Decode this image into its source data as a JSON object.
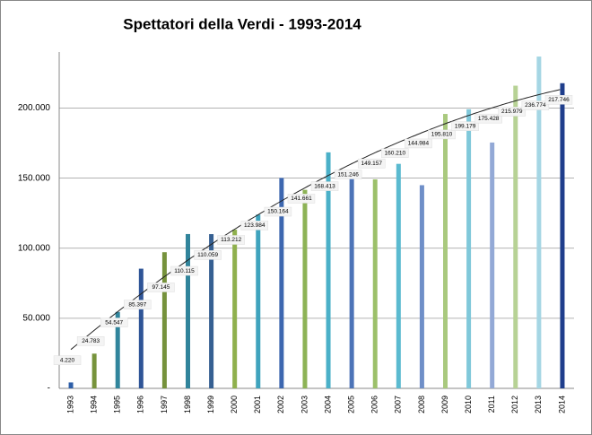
{
  "chart_data": {
    "type": "bar",
    "title": "Spettatori della Verdi - 1993-2014",
    "categories": [
      "1993",
      "1994",
      "1995",
      "1996",
      "1997",
      "1998",
      "1999",
      "2000",
      "2001",
      "2002",
      "2003",
      "2004",
      "2005",
      "2006",
      "2007",
      "2008",
      "2009",
      "2010",
      "2011",
      "2012",
      "2013",
      "2014"
    ],
    "values": [
      4220,
      24783,
      54547,
      85397,
      97145,
      110115,
      110059,
      113212,
      123984,
      150164,
      141661,
      168413,
      151246,
      149157,
      160210,
      144984,
      195810,
      199179,
      175428,
      215979,
      236774,
      217746
    ],
    "value_labels": [
      "4.220",
      "24.783",
      "54.547",
      "85.397",
      "97.145",
      "110.115",
      "110.059",
      "113.212",
      "123.984",
      "150.164",
      "141.661",
      "168.413",
      "151.246",
      "149.157",
      "160.210",
      "144.984",
      "195.810",
      "199.179",
      "175.428",
      "215.979",
      "236.774",
      "217.746"
    ],
    "colors": [
      "#2e5fa8",
      "#77933c",
      "#31859c",
      "#2f5597",
      "#76923c",
      "#31849b",
      "#366092",
      "#8fb04d",
      "#3fa3bd",
      "#3d67b0",
      "#8db356",
      "#4bb0c8",
      "#4d74b8",
      "#9cc06a",
      "#5bbad0",
      "#6f8fc8",
      "#a9c97e",
      "#80c8da",
      "#93a9d6",
      "#b7d295",
      "#a5d6e4",
      "#1f3e8c"
    ],
    "ylim": [
      0,
      240000
    ],
    "yticks": [
      {
        "value": 0,
        "label": "-"
      },
      {
        "value": 50000,
        "label": "50.000"
      },
      {
        "value": 100000,
        "label": "100.000"
      },
      {
        "value": 150000,
        "label": "150.000"
      },
      {
        "value": 200000,
        "label": "200.000"
      }
    ],
    "grid": true
  }
}
